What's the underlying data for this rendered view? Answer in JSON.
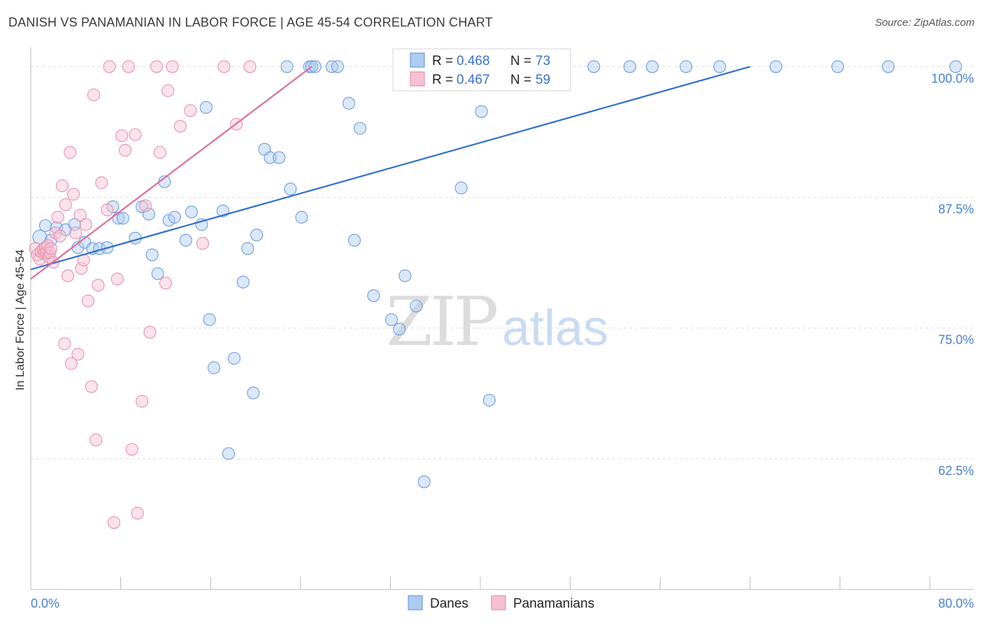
{
  "title": "DANISH VS PANAMANIAN IN LABOR FORCE | AGE 45-54 CORRELATION CHART",
  "source": "Source: ZipAtlas.com",
  "watermark": {
    "zip": "ZIP",
    "atlas": "atlas"
  },
  "chart_data": {
    "type": "scatter",
    "xlabel": "",
    "ylabel": "In Labor Force | Age 45-54",
    "xlim": [
      0,
      80
    ],
    "ylim": [
      50,
      102.5
    ],
    "x_tick_labels": {
      "min": "0.0%",
      "max": "80.0%"
    },
    "y_ticks": [
      {
        "value": 100,
        "label": "100.0%"
      },
      {
        "value": 87.5,
        "label": "87.5%"
      },
      {
        "value": 75,
        "label": "75.0%"
      },
      {
        "value": 62.5,
        "label": "62.5%"
      }
    ],
    "grid": "horizontal dashed",
    "legend_top": [
      {
        "series": "Danes",
        "r_label": "R =",
        "r_value": "0.468",
        "n_label": "N =",
        "n_value": "73"
      },
      {
        "series": "Panamanians",
        "r_label": "R =",
        "r_value": "0.467",
        "n_label": "N =",
        "n_value": "59"
      }
    ],
    "series": [
      {
        "name": "Danes",
        "color": "#6c9be0",
        "fill": "#aecbf0",
        "trend": {
          "x1": 0,
          "y1": 80.6,
          "x2": 64,
          "y2": 100
        },
        "points": [
          [
            0.8,
            83.7
          ],
          [
            1.3,
            84.8
          ],
          [
            1.8,
            83.4
          ],
          [
            2.3,
            84.6
          ],
          [
            3.1,
            84.4
          ],
          [
            3.9,
            84.9
          ],
          [
            4.2,
            82.7
          ],
          [
            4.8,
            83.2
          ],
          [
            5.5,
            82.6
          ],
          [
            6.1,
            82.6
          ],
          [
            6.8,
            82.7
          ],
          [
            7.3,
            86.6
          ],
          [
            7.8,
            85.5
          ],
          [
            8.2,
            85.5
          ],
          [
            9.3,
            83.6
          ],
          [
            9.9,
            86.6
          ],
          [
            10.5,
            85.9
          ],
          [
            10.8,
            82.0
          ],
          [
            11.3,
            80.2
          ],
          [
            11.9,
            89.0
          ],
          [
            12.3,
            85.3
          ],
          [
            12.8,
            85.6
          ],
          [
            13.8,
            83.4
          ],
          [
            14.3,
            86.1
          ],
          [
            15.2,
            84.9
          ],
          [
            15.6,
            96.1
          ],
          [
            15.9,
            75.8
          ],
          [
            16.3,
            71.2
          ],
          [
            17.1,
            86.2
          ],
          [
            17.6,
            63.0
          ],
          [
            18.1,
            72.1
          ],
          [
            18.9,
            79.4
          ],
          [
            19.3,
            82.6
          ],
          [
            19.8,
            68.8
          ],
          [
            20.1,
            83.9
          ],
          [
            20.8,
            92.1
          ],
          [
            21.3,
            91.3
          ],
          [
            22.1,
            91.3
          ],
          [
            22.8,
            100.0
          ],
          [
            23.1,
            88.3
          ],
          [
            24.1,
            85.6
          ],
          [
            24.8,
            100.0
          ],
          [
            25.0,
            100.0
          ],
          [
            25.3,
            100.0
          ],
          [
            26.8,
            100.0
          ],
          [
            27.3,
            100.0
          ],
          [
            28.3,
            96.5
          ],
          [
            28.8,
            83.4
          ],
          [
            29.3,
            94.1
          ],
          [
            30.5,
            78.1
          ],
          [
            32.1,
            75.8
          ],
          [
            32.8,
            74.9
          ],
          [
            33.3,
            80.0
          ],
          [
            34.3,
            77.1
          ],
          [
            35.0,
            60.3
          ],
          [
            35.3,
            100.0
          ],
          [
            37.1,
            100.0
          ],
          [
            38.3,
            88.4
          ],
          [
            39.3,
            100.0
          ],
          [
            40.1,
            95.7
          ],
          [
            40.8,
            68.1
          ],
          [
            41.5,
            100.0
          ],
          [
            44.3,
            100.0
          ],
          [
            46.8,
            100.0
          ],
          [
            50.1,
            100.0
          ],
          [
            53.3,
            100.0
          ],
          [
            55.3,
            100.0
          ],
          [
            58.3,
            100.0
          ],
          [
            61.3,
            100.0
          ],
          [
            66.3,
            100.0
          ],
          [
            71.8,
            100.0
          ],
          [
            76.3,
            100.0
          ],
          [
            82.3,
            100.0
          ]
        ]
      },
      {
        "name": "Panamanians",
        "color": "#e98fae",
        "fill": "#f6c1d3",
        "trend": {
          "x1": 0,
          "y1": 79.7,
          "x2": 25,
          "y2": 100
        },
        "points": [
          [
            0.4,
            82.6
          ],
          [
            0.6,
            82.0
          ],
          [
            0.8,
            81.6
          ],
          [
            0.9,
            82.3
          ],
          [
            1.1,
            82.5
          ],
          [
            1.2,
            82.1
          ],
          [
            1.3,
            82.7
          ],
          [
            1.4,
            82.2
          ],
          [
            1.5,
            82.9
          ],
          [
            1.6,
            81.8
          ],
          [
            1.7,
            82.2
          ],
          [
            1.8,
            82.6
          ],
          [
            2.0,
            81.3
          ],
          [
            2.2,
            84.1
          ],
          [
            2.4,
            85.6
          ],
          [
            2.6,
            83.8
          ],
          [
            2.8,
            88.6
          ],
          [
            3.0,
            73.5
          ],
          [
            3.1,
            86.8
          ],
          [
            3.3,
            80.0
          ],
          [
            3.5,
            91.8
          ],
          [
            3.6,
            71.6
          ],
          [
            3.8,
            87.8
          ],
          [
            4.0,
            84.1
          ],
          [
            4.2,
            72.5
          ],
          [
            4.4,
            85.8
          ],
          [
            4.5,
            80.7
          ],
          [
            4.7,
            81.5
          ],
          [
            4.9,
            84.9
          ],
          [
            5.1,
            77.6
          ],
          [
            5.4,
            69.4
          ],
          [
            5.6,
            97.3
          ],
          [
            5.8,
            64.3
          ],
          [
            6.0,
            79.1
          ],
          [
            6.3,
            88.9
          ],
          [
            6.8,
            86.3
          ],
          [
            7.0,
            100.0
          ],
          [
            7.4,
            56.4
          ],
          [
            7.7,
            79.7
          ],
          [
            8.1,
            93.4
          ],
          [
            8.4,
            92.0
          ],
          [
            8.7,
            100.0
          ],
          [
            9.0,
            63.4
          ],
          [
            9.3,
            93.5
          ],
          [
            9.5,
            57.3
          ],
          [
            9.9,
            68.0
          ],
          [
            10.2,
            86.7
          ],
          [
            10.6,
            74.6
          ],
          [
            11.2,
            100.0
          ],
          [
            11.5,
            91.8
          ],
          [
            12.0,
            79.3
          ],
          [
            12.2,
            97.7
          ],
          [
            12.6,
            100.0
          ],
          [
            13.3,
            94.3
          ],
          [
            14.2,
            95.8
          ],
          [
            15.3,
            83.1
          ],
          [
            17.2,
            100.0
          ],
          [
            18.3,
            94.5
          ],
          [
            19.5,
            100.0
          ]
        ]
      }
    ]
  },
  "bottom_legend": [
    {
      "label": "Danes",
      "color": "#aecbf0",
      "stroke": "#6c9be0"
    },
    {
      "label": "Panamanians",
      "color": "#f6c1d3",
      "stroke": "#e98fae"
    }
  ]
}
